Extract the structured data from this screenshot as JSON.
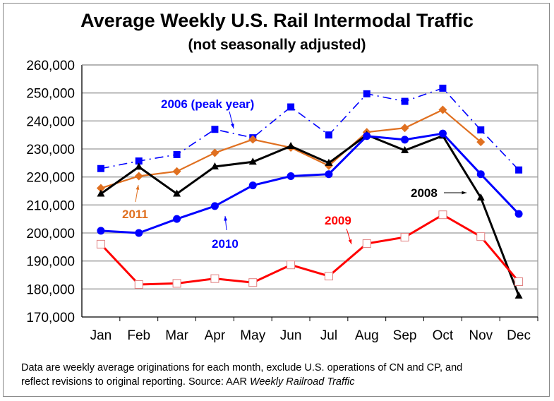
{
  "chart_data": {
    "type": "line",
    "title": "Average Weekly U.S. Rail Intermodal Traffic",
    "subtitle": "(not seasonally adjusted)",
    "xlabel": "",
    "ylabel": "",
    "categories": [
      "Jan",
      "Feb",
      "Mar",
      "Apr",
      "May",
      "Jun",
      "Jul",
      "Aug",
      "Sep",
      "Oct",
      "Nov",
      "Dec"
    ],
    "ylim": [
      170000,
      260000
    ],
    "yticks": [
      "170,000",
      "180,000",
      "190,000",
      "200,000",
      "210,000",
      "220,000",
      "230,000",
      "240,000",
      "250,000",
      "260,000"
    ],
    "grid": true,
    "legend": "inline annotations",
    "series": [
      {
        "name": "2006 (peak year)",
        "color": "#0000ff",
        "marker": "square",
        "dash": "dashdot",
        "values": [
          223000,
          225700,
          228000,
          237000,
          234000,
          245000,
          235000,
          249700,
          247000,
          251700,
          236800,
          222500
        ]
      },
      {
        "name": "2011",
        "color": "#e07020",
        "marker": "diamond",
        "dash": "solid",
        "values": [
          216000,
          220300,
          222000,
          228600,
          233400,
          230500,
          224000,
          236000,
          237500,
          244000,
          232500,
          null
        ]
      },
      {
        "name": "2008",
        "color": "#000000",
        "marker": "triangle",
        "dash": "solid",
        "values": [
          214000,
          223600,
          214000,
          223700,
          225400,
          231000,
          225000,
          235000,
          229500,
          234700,
          212600,
          177600
        ]
      },
      {
        "name": "2010",
        "color": "#0000ff",
        "marker": "circle",
        "dash": "solid",
        "values": [
          200800,
          200000,
          205000,
          209600,
          217000,
          220300,
          221000,
          234600,
          233300,
          235500,
          221000,
          206800
        ]
      },
      {
        "name": "2009",
        "color": "#ff0000",
        "marker": "open-square",
        "dash": "solid",
        "values": [
          196000,
          181600,
          182000,
          183700,
          182300,
          188600,
          184600,
          196200,
          198500,
          206500,
          198700,
          182600
        ]
      }
    ]
  },
  "footnote": {
    "line1": "Data are weekly average originations for each month, exclude U.S. operations of CN and CP, and",
    "line2_prefix": "reflect revisions to original reporting.  Source: AAR ",
    "line2_italic": "Weekly Railroad Traffic"
  }
}
